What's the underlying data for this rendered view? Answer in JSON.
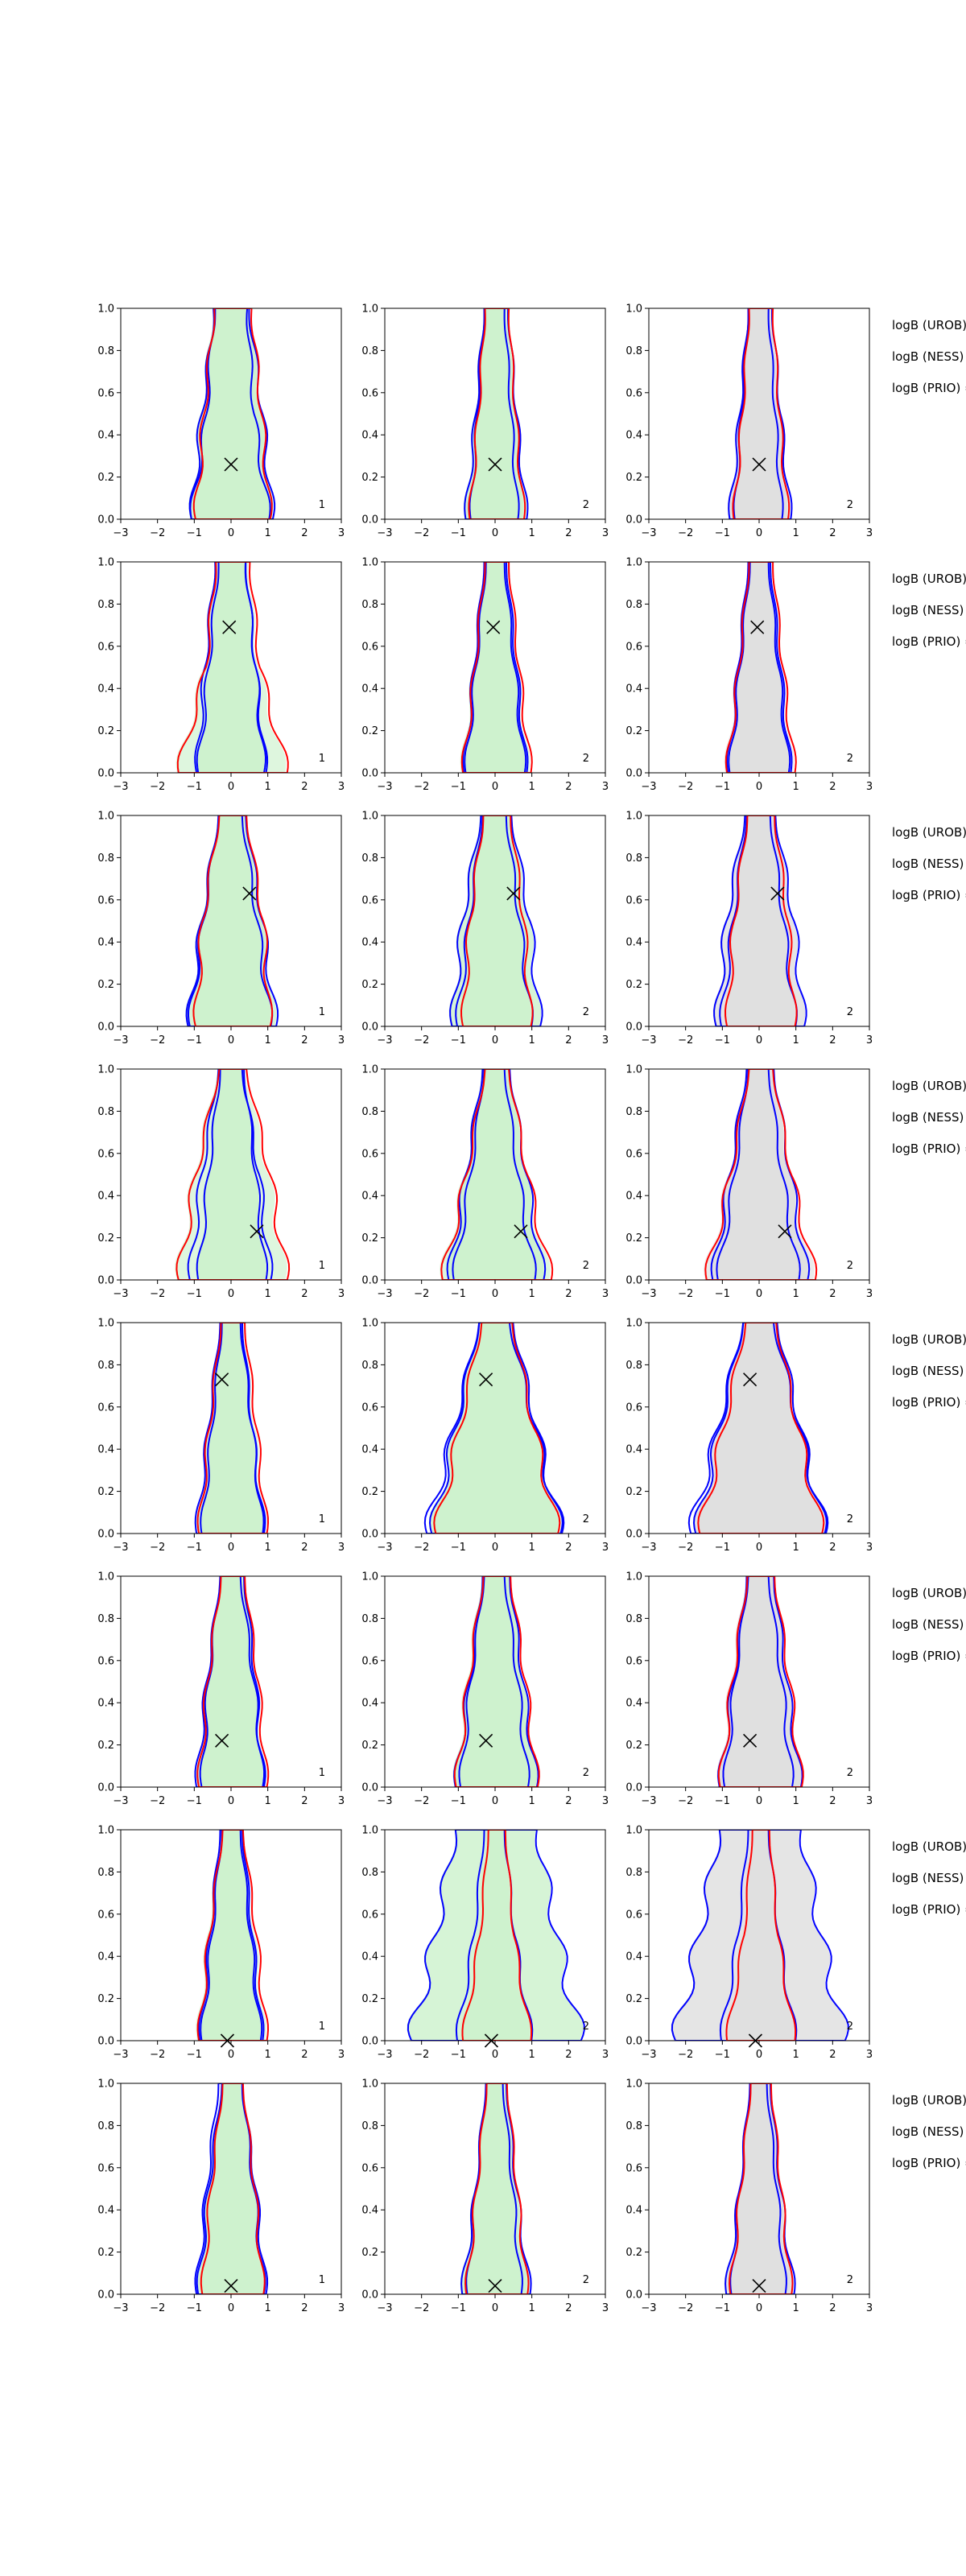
{
  "figure": {
    "side_text_rows": [
      [
        "logB (UROB) =",
        "logB (NESS) =",
        "logB (PRIO) ="
      ],
      [
        "logB (UROB) =",
        "logB (NESS) =",
        "logB (PRIO) ="
      ],
      [
        "logB (UROB) =",
        "logB (NESS) =",
        "logB (PRIO) ="
      ],
      [
        "logB (UROB) =",
        "logB (NESS) =",
        "logB (PRIO) ="
      ],
      [
        "logB (UROB) =",
        "logB (NESS) =",
        "logB (PRIO) ="
      ],
      [
        "logB (UROB) =",
        "logB (NESS) =",
        "logB (PRIO) ="
      ],
      [
        "logB (UROB) =",
        "logB (NESS) =",
        "logB (PRIO) ="
      ],
      [
        "logB (UROB) =",
        "logB (NESS) =",
        "logB (PRIO) ="
      ]
    ],
    "colors": {
      "blue": "#0000ff",
      "red": "#ff0000",
      "green_fill": "#c8f0c8",
      "grey_fill": "#dcdcdc",
      "olive_line": "#c8a000",
      "axis": "#000000"
    }
  },
  "chart_data": {
    "type": "contour",
    "xlim": [
      -3,
      3
    ],
    "ylim": [
      0,
      1
    ],
    "xticks": [
      "−3",
      "−2",
      "−1",
      "0",
      "1",
      "2",
      "3"
    ],
    "yticks": [
      "0.0",
      "0.2",
      "0.4",
      "0.6",
      "0.8",
      "1.0"
    ],
    "column_labels": [
      "1",
      "2",
      "2"
    ],
    "markers": [
      {
        "x": 0.0,
        "y": 0.26
      },
      {
        "x": -0.05,
        "y": 0.69
      },
      {
        "x": 0.5,
        "y": 0.63
      },
      {
        "x": 0.7,
        "y": 0.23
      },
      {
        "x": -0.25,
        "y": 0.73
      },
      {
        "x": -0.25,
        "y": 0.22
      },
      {
        "x": -0.1,
        "y": 0.0
      },
      {
        "x": 0.0,
        "y": 0.04
      }
    ],
    "rows": [
      {
        "c1": [
          [
            1.2,
            0.9,
            0.5
          ],
          [
            1.1,
            0.85,
            0.55
          ],
          [
            1.15,
            0.7,
            0.5
          ]
        ],
        "c2": [
          [
            0.9,
            0.6,
            0.35
          ],
          [
            0.8,
            0.55,
            0.35
          ],
          [
            0.7,
            0.5,
            0.3
          ]
        ],
        "c3": [
          [
            0.9,
            0.6,
            0.35
          ],
          [
            0.8,
            0.55,
            0.35
          ],
          [
            0.7,
            0.5,
            0.3
          ]
        ]
      },
      {
        "c1": [
          [
            1.0,
            0.7,
            0.4
          ],
          [
            1.6,
            0.8,
            0.5
          ],
          [
            1.0,
            0.75,
            0.45
          ]
        ],
        "c2": [
          [
            0.9,
            0.6,
            0.3
          ],
          [
            1.0,
            0.65,
            0.35
          ],
          [
            0.9,
            0.6,
            0.3
          ]
        ],
        "c3": [
          [
            0.9,
            0.6,
            0.3
          ],
          [
            1.0,
            0.65,
            0.35
          ],
          [
            0.9,
            0.6,
            0.3
          ]
        ]
      },
      {
        "c1": [
          [
            1.3,
            0.9,
            0.4
          ],
          [
            1.1,
            0.9,
            0.4
          ],
          [
            1.2,
            0.8,
            0.35
          ]
        ],
        "c2": [
          [
            1.3,
            1.0,
            0.45
          ],
          [
            1.0,
            0.8,
            0.4
          ],
          [
            1.1,
            0.75,
            0.35
          ]
        ],
        "c3": [
          [
            1.3,
            1.0,
            0.45
          ],
          [
            1.0,
            0.8,
            0.4
          ],
          [
            1.1,
            0.75,
            0.35
          ]
        ]
      },
      {
        "c1": [
          [
            1.0,
            0.7,
            0.35
          ],
          [
            1.6,
            1.1,
            0.4
          ],
          [
            1.2,
            0.85,
            0.35
          ]
        ],
        "c2": [
          [
            1.4,
            0.9,
            0.4
          ],
          [
            1.6,
            0.9,
            0.35
          ],
          [
            1.2,
            0.7,
            0.3
          ]
        ],
        "c3": [
          [
            1.4,
            0.9,
            0.4
          ],
          [
            1.6,
            0.9,
            0.35
          ],
          [
            1.2,
            0.7,
            0.3
          ]
        ]
      },
      {
        "c1": [
          [
            0.9,
            0.6,
            0.3
          ],
          [
            1.0,
            0.7,
            0.35
          ],
          [
            1.0,
            0.65,
            0.3
          ]
        ],
        "c2": [
          [
            1.9,
            1.2,
            0.5
          ],
          [
            1.8,
            1.1,
            0.45
          ],
          [
            2.0,
            1.2,
            0.45
          ]
        ],
        "c3": [
          [
            1.9,
            1.2,
            0.5
          ],
          [
            1.8,
            1.1,
            0.45
          ],
          [
            2.0,
            1.2,
            0.45
          ]
        ]
      },
      {
        "c1": [
          [
            0.9,
            0.7,
            0.35
          ],
          [
            1.0,
            0.75,
            0.35
          ],
          [
            1.0,
            0.7,
            0.3
          ]
        ],
        "c2": [
          [
            1.2,
            0.8,
            0.4
          ],
          [
            1.2,
            0.85,
            0.4
          ],
          [
            1.0,
            0.7,
            0.3
          ]
        ],
        "c3": [
          [
            1.2,
            0.8,
            0.4
          ],
          [
            1.2,
            0.85,
            0.4
          ],
          [
            1.0,
            0.7,
            0.3
          ]
        ]
      },
      {
        "c1": [
          [
            0.9,
            0.6,
            0.3
          ],
          [
            1.0,
            0.7,
            0.3
          ],
          [
            0.9,
            0.6,
            0.3
          ]
        ],
        "c2": [
          [
            2.5,
            1.8,
            1.2
          ],
          [
            1.0,
            0.5,
            0.25
          ],
          [
            1.1,
            0.6,
            0.3
          ]
        ],
        "c3": [
          [
            2.5,
            1.8,
            1.2
          ],
          [
            1.0,
            0.5,
            0.25
          ],
          [
            1.1,
            0.6,
            0.3
          ]
        ]
      },
      {
        "c1": [
          [
            1.0,
            0.7,
            0.3
          ],
          [
            0.9,
            0.65,
            0.3
          ],
          [
            1.0,
            0.7,
            0.35
          ]
        ],
        "c2": [
          [
            1.0,
            0.6,
            0.3
          ],
          [
            0.9,
            0.6,
            0.3
          ],
          [
            0.8,
            0.55,
            0.25
          ]
        ],
        "c3": [
          [
            1.0,
            0.6,
            0.3
          ],
          [
            0.9,
            0.6,
            0.3
          ],
          [
            0.8,
            0.55,
            0.25
          ]
        ]
      }
    ]
  }
}
